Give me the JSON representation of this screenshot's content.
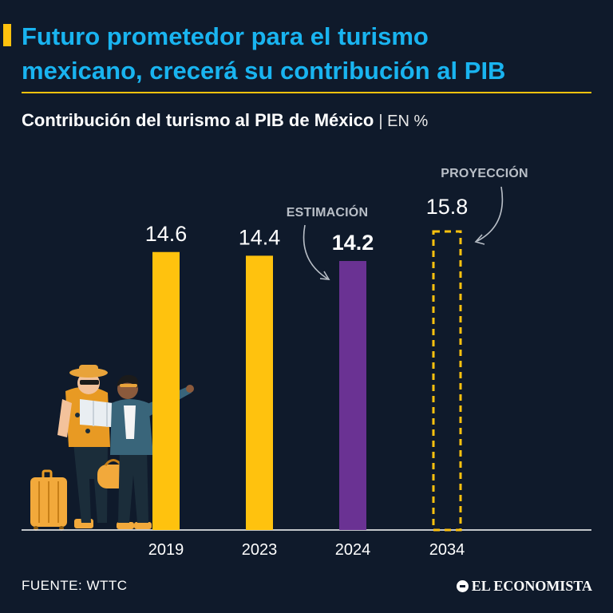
{
  "header": {
    "headline_line1": "Futuro prometedor para el turismo",
    "headline_line2": "mexicano, crecerá su contribución al PIB",
    "subtitle": "Contribución del turismo al PIB de México",
    "subtitle_unit": "| EN %"
  },
  "chart_data": {
    "type": "bar",
    "title": "Contribución del turismo al PIB de México",
    "unit": "EN %",
    "categories": [
      "2019",
      "2023",
      "2024",
      "2034"
    ],
    "values": [
      14.6,
      14.4,
      14.2,
      15.8
    ],
    "value_labels": [
      "14.6",
      "14.4",
      "14.2",
      "15.8"
    ],
    "styles": [
      "actual",
      "actual",
      "estimate",
      "projection"
    ],
    "annotations": [
      {
        "text": "ESTIMACIÓN",
        "category": "2024"
      },
      {
        "text": "PROYECCIÓN",
        "category": "2034"
      }
    ],
    "colors": {
      "actual": "#ffc20e",
      "estimate": "#6a3293",
      "projection": "#ffc20e",
      "axis": "#ffffff",
      "annotation": "#b9bfc7"
    },
    "ylim": [
      0,
      16.5
    ],
    "grid": false,
    "legend": "none"
  },
  "footer": {
    "source": "FUENTE:  WTTC",
    "brand": "EL ECONOMISTA"
  }
}
